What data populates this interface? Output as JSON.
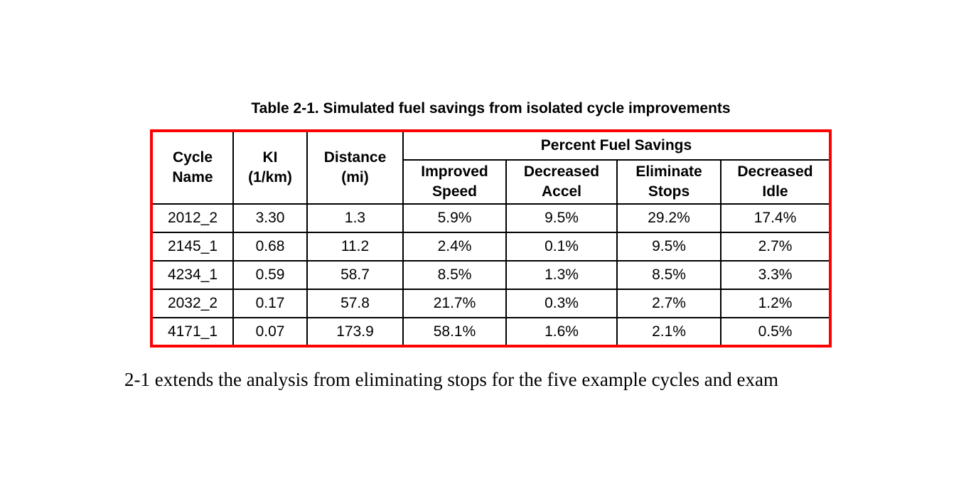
{
  "page": {
    "title": "Table 2-1. Simulated fuel savings from isolated cycle improvements",
    "body_text_fragment": "2-1 extends the analysis from eliminating stops for the five example cycles and exam"
  },
  "table": {
    "outline_color": "#ff0000",
    "grid_color": "#000000",
    "header": {
      "cycle_name": "Cycle\nName",
      "ki": "KI\n(1/km)",
      "distance": "Distance\n(mi)",
      "group": "Percent Fuel Savings",
      "sub": [
        "Improved\nSpeed",
        "Decreased\nAccel",
        "Eliminate\nStops",
        "Decreased\nIdle"
      ]
    },
    "rows": [
      {
        "cycle": "2012_2",
        "ki": "3.30",
        "distance": "1.3",
        "improved_speed": "5.9%",
        "decreased_accel": "9.5%",
        "eliminate_stops": "29.2%",
        "decreased_idle": "17.4%"
      },
      {
        "cycle": "2145_1",
        "ki": "0.68",
        "distance": "11.2",
        "improved_speed": "2.4%",
        "decreased_accel": "0.1%",
        "eliminate_stops": "9.5%",
        "decreased_idle": "2.7%"
      },
      {
        "cycle": "4234_1",
        "ki": "0.59",
        "distance": "58.7",
        "improved_speed": "8.5%",
        "decreased_accel": "1.3%",
        "eliminate_stops": "8.5%",
        "decreased_idle": "3.3%"
      },
      {
        "cycle": "2032_2",
        "ki": "0.17",
        "distance": "57.8",
        "improved_speed": "21.7%",
        "decreased_accel": "0.3%",
        "eliminate_stops": "2.7%",
        "decreased_idle": "1.2%"
      },
      {
        "cycle": "4171_1",
        "ki": "0.07",
        "distance": "173.9",
        "improved_speed": "58.1%",
        "decreased_accel": "1.6%",
        "eliminate_stops": "2.1%",
        "decreased_idle": "0.5%"
      }
    ]
  }
}
